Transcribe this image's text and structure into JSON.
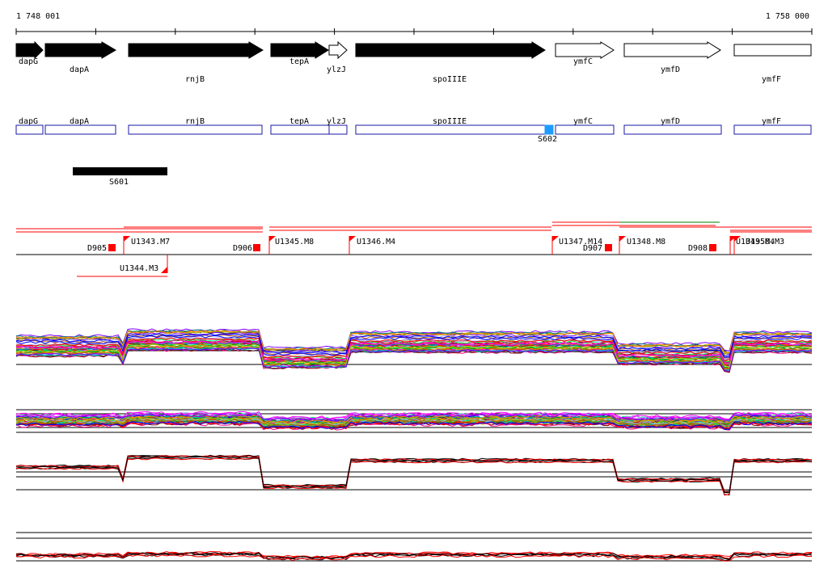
{
  "ruler": {
    "start_label": "1 748 001",
    "end_label": "1 758 000"
  },
  "genes": [
    {
      "name": "dapG",
      "strand": "+",
      "filled": true
    },
    {
      "name": "dapA",
      "strand": "+",
      "filled": true
    },
    {
      "name": "rnjB",
      "strand": "+",
      "filled": true
    },
    {
      "name": "tepA",
      "strand": "+",
      "filled": true
    },
    {
      "name": "ylzJ",
      "strand": "+",
      "filled": false
    },
    {
      "name": "spoIIIE",
      "strand": "+",
      "filled": true
    },
    {
      "name": "ymfC",
      "strand": "+",
      "filled": false
    },
    {
      "name": "ymfD",
      "strand": "+",
      "filled": false
    },
    {
      "name": "ymfF",
      "strand": "+",
      "filled": false
    }
  ],
  "feature_s602": {
    "label": "S602",
    "color": "#1e9bff"
  },
  "feature_s601": {
    "label": "S601"
  },
  "upshifts": [
    {
      "label": "U1343.M7"
    },
    {
      "label": "U1344.M3"
    },
    {
      "label": "U1345.M8"
    },
    {
      "label": "U1346.M4"
    },
    {
      "label": "U1347.M14"
    },
    {
      "label": "U1348.M8"
    },
    {
      "label": "U1349.M4"
    },
    {
      "label": "U1350.M3"
    }
  ],
  "downshifts": [
    {
      "label": "D905"
    },
    {
      "label": "D906"
    },
    {
      "label": "D907"
    },
    {
      "label": "D908"
    }
  ],
  "colors": {
    "gene_outline": "#1a1aa6",
    "marker_red": "#ff0000",
    "series_palette": [
      "#ff0000",
      "#00a000",
      "#0000ff",
      "#ff00ff",
      "#00c0c0",
      "#c0c000",
      "#ff8000",
      "#8000ff",
      "#008080",
      "#800000",
      "#808000",
      "#00ff80",
      "#ff0080",
      "#404040",
      "#a0a0ff",
      "#c06000"
    ]
  }
}
